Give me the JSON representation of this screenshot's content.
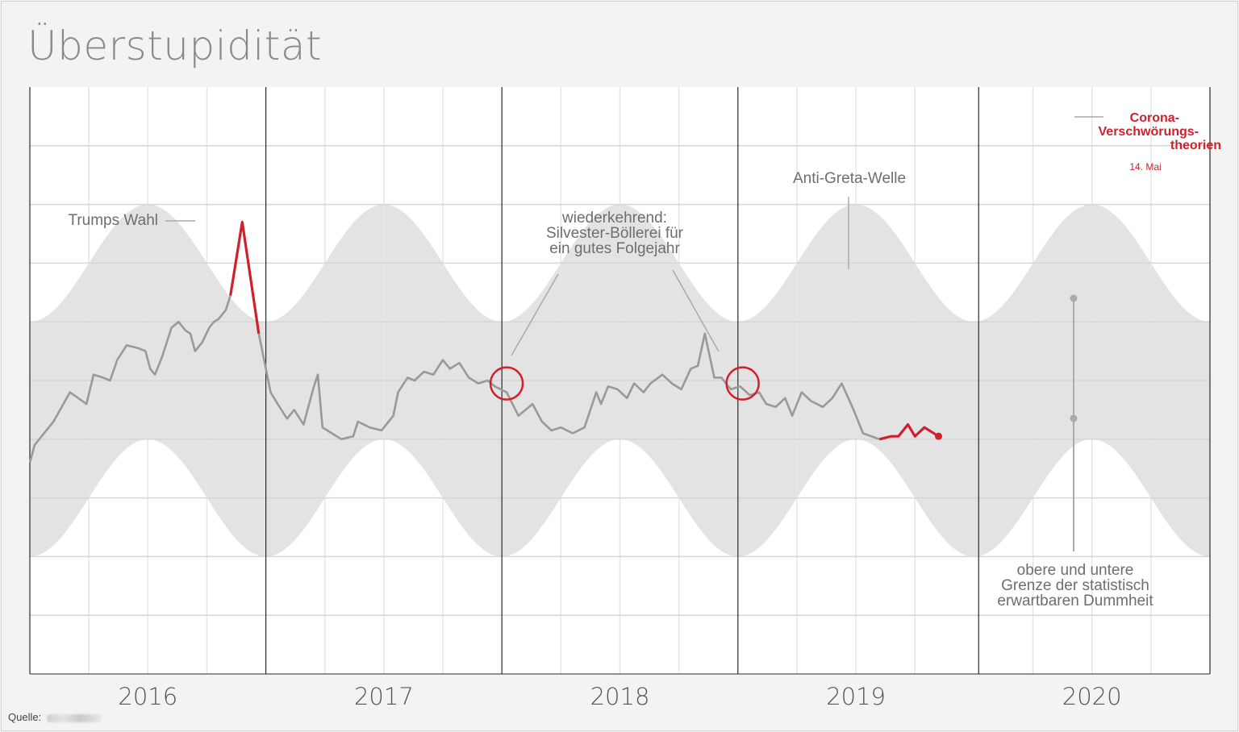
{
  "title": "Überstupidität",
  "source_label": "Quelle:",
  "chart_data": {
    "type": "line",
    "title": "Überstupidität",
    "x_unit": "years",
    "xlim": [
      2015.5,
      2020.5
    ],
    "ylim": [
      0,
      10
    ],
    "grid": true,
    "year_labels": [
      "2016",
      "2017",
      "2018",
      "2019",
      "2020"
    ],
    "year_label_positions": [
      2016.0,
      2017.0,
      2018.0,
      2019.0,
      2020.0
    ],
    "year_boundaries": [
      2016.5,
      2017.5,
      2018.5,
      2019.52
    ],
    "band": {
      "description": "obere und untere Grenze der statistisch erwartbaren Dummheit",
      "center": 5.0,
      "amplitude": 1.0,
      "half_width": 2.0,
      "peak_phase": 0.0
    },
    "series": [
      {
        "values": [
          [
            2015.5,
            3.6
          ],
          [
            2015.52,
            3.9
          ],
          [
            2015.55,
            4.05
          ],
          [
            2015.6,
            4.3
          ],
          [
            2015.67,
            4.8
          ],
          [
            2015.74,
            4.6
          ],
          [
            2015.77,
            5.1
          ],
          [
            2015.81,
            5.05
          ],
          [
            2015.84,
            5.0
          ],
          [
            2015.87,
            5.35
          ],
          [
            2015.91,
            5.6
          ],
          [
            2015.96,
            5.55
          ],
          [
            2015.99,
            5.5
          ],
          [
            2016.01,
            5.2
          ],
          [
            2016.03,
            5.1
          ],
          [
            2016.06,
            5.4
          ],
          [
            2016.1,
            5.9
          ],
          [
            2016.13,
            6.0
          ],
          [
            2016.16,
            5.85
          ],
          [
            2016.18,
            5.8
          ],
          [
            2016.2,
            5.5
          ],
          [
            2016.23,
            5.65
          ],
          [
            2016.26,
            5.9
          ],
          [
            2016.28,
            6.0
          ],
          [
            2016.3,
            6.05
          ],
          [
            2016.33,
            6.2
          ],
          [
            2016.35,
            6.45
          ],
          [
            2016.4,
            7.7
          ],
          [
            2016.47,
            5.8
          ],
          [
            2016.52,
            4.8
          ],
          [
            2016.55,
            4.6
          ],
          [
            2016.59,
            4.35
          ],
          [
            2016.62,
            4.5
          ],
          [
            2016.66,
            4.25
          ],
          [
            2016.7,
            4.85
          ],
          [
            2016.72,
            5.1
          ],
          [
            2016.74,
            4.2
          ],
          [
            2016.78,
            4.1
          ],
          [
            2016.82,
            4.0
          ],
          [
            2016.87,
            4.05
          ],
          [
            2016.89,
            4.3
          ],
          [
            2016.94,
            4.2
          ],
          [
            2016.99,
            4.15
          ],
          [
            2017.04,
            4.4
          ],
          [
            2017.06,
            4.8
          ],
          [
            2017.1,
            5.05
          ],
          [
            2017.13,
            5.0
          ],
          [
            2017.17,
            5.15
          ],
          [
            2017.21,
            5.1
          ],
          [
            2017.25,
            5.35
          ],
          [
            2017.28,
            5.2
          ],
          [
            2017.32,
            5.3
          ],
          [
            2017.36,
            5.05
          ],
          [
            2017.4,
            4.95
          ],
          [
            2017.44,
            5.0
          ],
          [
            2017.47,
            4.9
          ],
          [
            2017.52,
            4.8
          ],
          [
            2017.57,
            4.4
          ],
          [
            2017.63,
            4.6
          ],
          [
            2017.67,
            4.3
          ],
          [
            2017.71,
            4.15
          ],
          [
            2017.75,
            4.2
          ],
          [
            2017.8,
            4.1
          ],
          [
            2017.85,
            4.2
          ],
          [
            2017.9,
            4.8
          ],
          [
            2017.92,
            4.6
          ],
          [
            2017.95,
            4.9
          ],
          [
            2017.99,
            4.85
          ],
          [
            2018.03,
            4.7
          ],
          [
            2018.06,
            4.95
          ],
          [
            2018.1,
            4.8
          ],
          [
            2018.13,
            4.95
          ],
          [
            2018.18,
            5.1
          ],
          [
            2018.22,
            4.95
          ],
          [
            2018.26,
            4.85
          ],
          [
            2018.3,
            5.2
          ],
          [
            2018.33,
            5.25
          ],
          [
            2018.36,
            5.8
          ],
          [
            2018.4,
            5.05
          ],
          [
            2018.43,
            5.05
          ],
          [
            2018.47,
            4.85
          ],
          [
            2018.51,
            4.9
          ],
          [
            2018.55,
            4.75
          ],
          [
            2018.59,
            4.8
          ],
          [
            2018.62,
            4.6
          ],
          [
            2018.66,
            4.55
          ],
          [
            2018.7,
            4.7
          ],
          [
            2018.73,
            4.4
          ],
          [
            2018.77,
            4.8
          ],
          [
            2018.81,
            4.65
          ],
          [
            2018.86,
            4.55
          ],
          [
            2018.9,
            4.7
          ],
          [
            2018.94,
            4.95
          ],
          [
            2018.99,
            4.5
          ],
          [
            2019.03,
            4.1
          ],
          [
            2019.1,
            4.0
          ],
          [
            2019.15,
            4.05
          ],
          [
            2019.18,
            4.05
          ],
          [
            2019.22,
            4.25
          ],
          [
            2019.25,
            4.05
          ],
          [
            2019.29,
            4.2
          ],
          [
            2019.35,
            4.05
          ]
        ]
      }
    ]
  },
  "annotations": {
    "trump": "Trumps Wahl",
    "silvester": [
      "wiederkehrend:",
      "Silvester-Böllerei für",
      "ein gutes Folgejahr"
    ],
    "greta": "Anti-Greta-Welle",
    "corona": [
      "Corona-",
      "Verschwörungs-",
      "theorien"
    ],
    "corona_date": "14. Mai",
    "band_note": [
      "obere und untere",
      "Grenze der statistisch",
      "erwartbaren Dummheit"
    ]
  },
  "colors": {
    "line": "#999999",
    "highlight": "#d0202b",
    "band": "#e3e3e3",
    "grid_major": "#d6d6d6",
    "grid_minor": "#e6e6e6",
    "year_divider": "#2a2a2a",
    "label": "#6e6e6e"
  }
}
